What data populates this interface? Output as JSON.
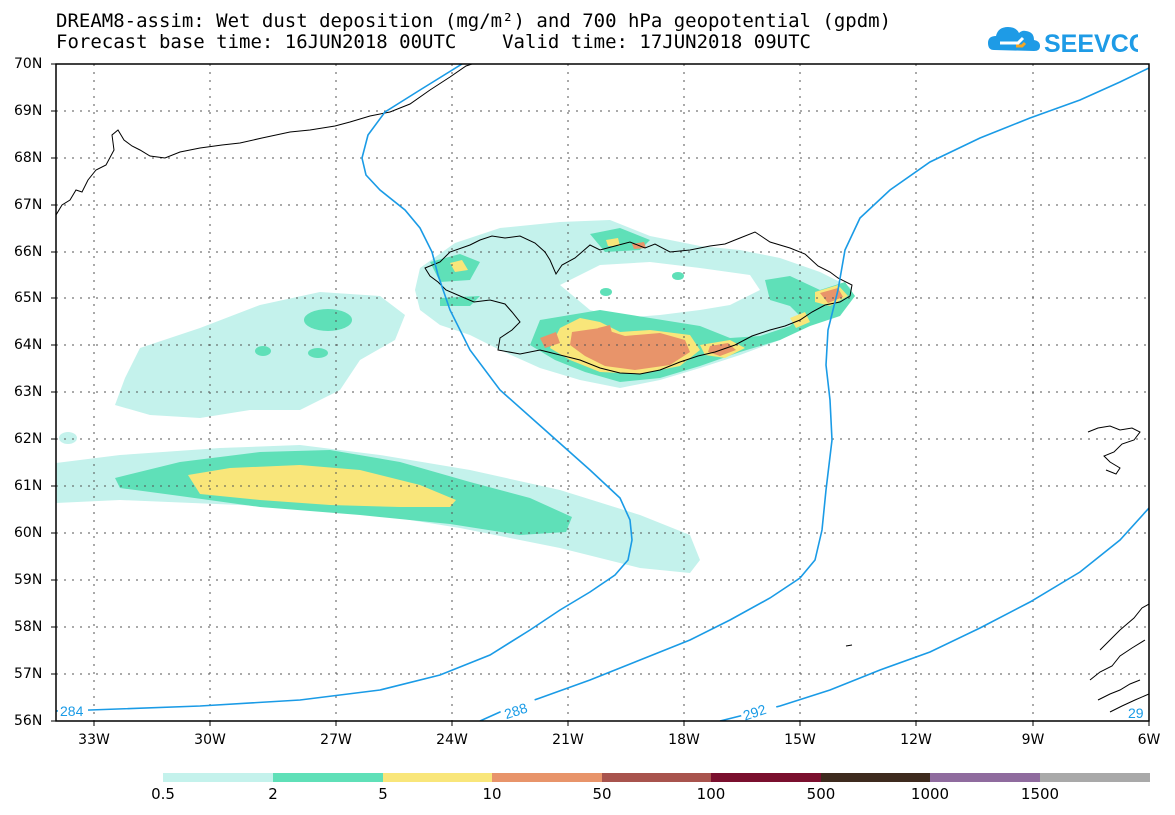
{
  "title": {
    "line1": "DREAM8-assim: Wet dust deposition (mg/m²) and 700 hPa geopotential (gpdm)",
    "line2": "Forecast base time: 16JUN2018 00UTC    Valid time: 17JUN2018 09UTC"
  },
  "logo": {
    "text": "SEEVCCC",
    "icon": "cloud-icon",
    "color": "#1e9be6",
    "accent": "#f5a623"
  },
  "map": {
    "lat_labels": [
      "70N",
      "69N",
      "68N",
      "67N",
      "66N",
      "65N",
      "64N",
      "63N",
      "62N",
      "61N",
      "60N",
      "59N",
      "58N",
      "57N",
      "56N"
    ],
    "lon_labels": [
      "33W",
      "30W",
      "27W",
      "24W",
      "21W",
      "18W",
      "15W",
      "12W",
      "9W",
      "6W"
    ],
    "contour_labels": [
      "284",
      "288",
      "292",
      "29"
    ],
    "contour_color": "#1a9be6"
  },
  "legend": {
    "labels": [
      "0.5",
      "2",
      "5",
      "10",
      "50",
      "100",
      "500",
      "1000",
      "1500"
    ],
    "colors": [
      "#c4f2ec",
      "#5fe0b8",
      "#f9e67a",
      "#e8946a",
      "#a8534d",
      "#7a0f2e",
      "#3e2a1e",
      "#8f6b9e",
      "#a9a9a9"
    ]
  }
}
